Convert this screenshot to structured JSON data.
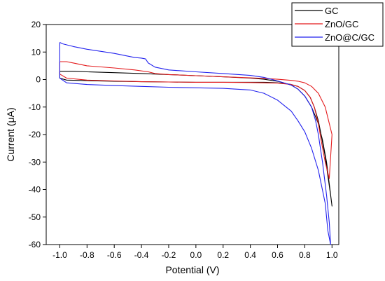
{
  "chart_data": {
    "type": "line",
    "title": "",
    "xlabel": "Potential (V)",
    "ylabel": "Current (μA)",
    "xlim": [
      -1.1,
      1.05
    ],
    "ylim": [
      -60,
      20
    ],
    "x_ticks": [
      -1.0,
      -0.8,
      -0.6,
      -0.4,
      -0.2,
      0.0,
      0.2,
      0.4,
      0.6,
      0.8,
      1.0
    ],
    "x_tick_labels": [
      "-1.0",
      "-0.8",
      "-0.6",
      "-0.4",
      "-0.2",
      "0.0",
      "0.2",
      "0.4",
      "0.6",
      "0.8",
      "1.0"
    ],
    "y_ticks": [
      -60,
      -50,
      -40,
      -30,
      -20,
      -10,
      0,
      10,
      20
    ],
    "y_tick_labels": [
      "-60",
      "-50",
      "-40",
      "-30",
      "-20",
      "-10",
      "0",
      "10",
      "20"
    ],
    "grid": false,
    "legend_position": "top-right",
    "series": [
      {
        "name": "GC",
        "color": "#000000",
        "x": [
          -1.0,
          -0.9,
          -0.8,
          -0.6,
          -0.4,
          -0.2,
          0.0,
          0.2,
          0.4,
          0.5,
          0.6,
          0.7,
          0.75,
          0.8,
          0.85,
          0.9,
          0.93,
          0.96,
          0.98,
          1.0,
          0.99,
          0.97,
          0.95,
          0.92,
          0.9,
          0.87,
          0.84,
          0.8,
          0.75,
          0.7,
          0.65,
          0.6,
          0.5,
          0.4,
          0.3,
          0.2,
          0.0,
          -0.2,
          -0.4,
          -0.6,
          -0.8,
          -0.95,
          -1.0,
          -1.0
        ],
        "y": [
          3.0,
          3.0,
          2.8,
          2.5,
          2.2,
          1.8,
          1.4,
          1.0,
          0.5,
          0.1,
          -0.6,
          -2.0,
          -3.5,
          -6.0,
          -10.0,
          -16.0,
          -22.0,
          -30.0,
          -38.0,
          -46.0,
          -42.0,
          -35.0,
          -28.0,
          -20.0,
          -15.0,
          -10.0,
          -6.5,
          -4.0,
          -2.5,
          -1.8,
          -1.4,
          -1.2,
          -1.0,
          -1.0,
          -1.0,
          -1.0,
          -1.0,
          -0.9,
          -0.8,
          -0.6,
          -0.4,
          -0.2,
          0.5,
          3.0
        ]
      },
      {
        "name": "ZnO/GC",
        "color": "#e41a1c",
        "x": [
          -1.0,
          -0.95,
          -0.9,
          -0.8,
          -0.6,
          -0.45,
          -0.35,
          -0.3,
          -0.2,
          0.0,
          0.2,
          0.4,
          0.5,
          0.6,
          0.7,
          0.75,
          0.8,
          0.85,
          0.9,
          0.95,
          1.0,
          0.98,
          0.95,
          0.92,
          0.9,
          0.87,
          0.84,
          0.8,
          0.75,
          0.7,
          0.6,
          0.5,
          0.4,
          0.2,
          0.0,
          -0.2,
          -0.4,
          -0.6,
          -0.8,
          -0.95,
          -1.0,
          -1.0
        ],
        "y": [
          6.5,
          6.5,
          6.0,
          5.0,
          4.2,
          3.5,
          2.8,
          2.2,
          1.8,
          1.4,
          1.0,
          0.6,
          0.4,
          0.1,
          -0.3,
          -0.6,
          -1.2,
          -2.5,
          -5.0,
          -10.0,
          -20.0,
          -36.0,
          -30.0,
          -22.0,
          -16.0,
          -10.0,
          -6.5,
          -4.0,
          -2.5,
          -1.8,
          -1.3,
          -1.2,
          -1.1,
          -1.0,
          -1.0,
          -0.9,
          -0.8,
          -0.5,
          -0.2,
          0.5,
          2.0,
          6.5
        ]
      },
      {
        "name": "ZnO@C/GC",
        "color": "#2222ee",
        "x": [
          -1.0,
          -0.98,
          -0.9,
          -0.8,
          -0.6,
          -0.45,
          -0.4,
          -0.37,
          -0.35,
          -0.3,
          -0.2,
          0.0,
          0.2,
          0.4,
          0.5,
          0.6,
          0.7,
          0.75,
          0.8,
          0.85,
          0.88,
          0.9,
          0.93,
          0.96,
          0.98,
          0.99,
          0.97,
          0.95,
          0.9,
          0.85,
          0.8,
          0.75,
          0.7,
          0.6,
          0.5,
          0.4,
          0.2,
          0.0,
          -0.2,
          -0.4,
          -0.6,
          -0.8,
          -0.95,
          -1.0,
          -1.0
        ],
        "y": [
          13.5,
          13.0,
          12.0,
          11.0,
          9.5,
          8.0,
          7.8,
          7.5,
          6.0,
          4.5,
          3.5,
          2.8,
          2.2,
          1.5,
          0.8,
          -0.5,
          -2.0,
          -3.5,
          -6.0,
          -10.0,
          -15.0,
          -20.0,
          -30.0,
          -42.0,
          -52.0,
          -60.0,
          -55.0,
          -45.0,
          -33.0,
          -25.0,
          -19.0,
          -15.0,
          -11.5,
          -7.5,
          -5.0,
          -3.8,
          -3.2,
          -3.0,
          -2.8,
          -2.5,
          -2.2,
          -1.8,
          -1.2,
          0.5,
          13.5
        ]
      }
    ]
  }
}
